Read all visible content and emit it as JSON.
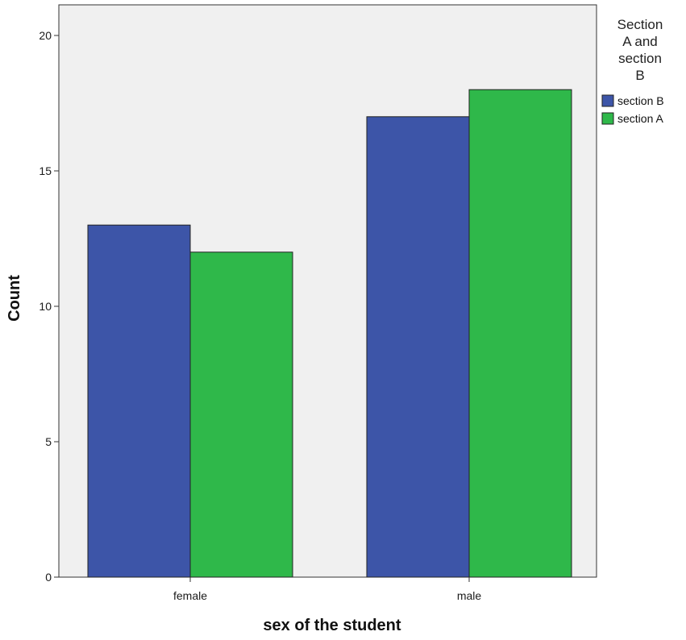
{
  "chart_data": {
    "type": "bar",
    "title": "",
    "xlabel": "sex of the student",
    "ylabel": "Count",
    "categories": [
      "female",
      "male"
    ],
    "ylim": [
      0,
      21
    ],
    "yticks": [
      0,
      5,
      10,
      15,
      20
    ],
    "grid": false,
    "legend": {
      "title_lines": [
        "Section",
        "A and",
        "section",
        "B"
      ],
      "placement": "top-right-outside"
    },
    "series": [
      {
        "name": "section B",
        "color": "#3d55a8",
        "values": [
          13,
          17
        ]
      },
      {
        "name": "section A",
        "color": "#2fb84a",
        "values": [
          12,
          18
        ]
      }
    ],
    "colors": {
      "plot_background": "#f0f0f0",
      "axis": "#333333"
    }
  }
}
